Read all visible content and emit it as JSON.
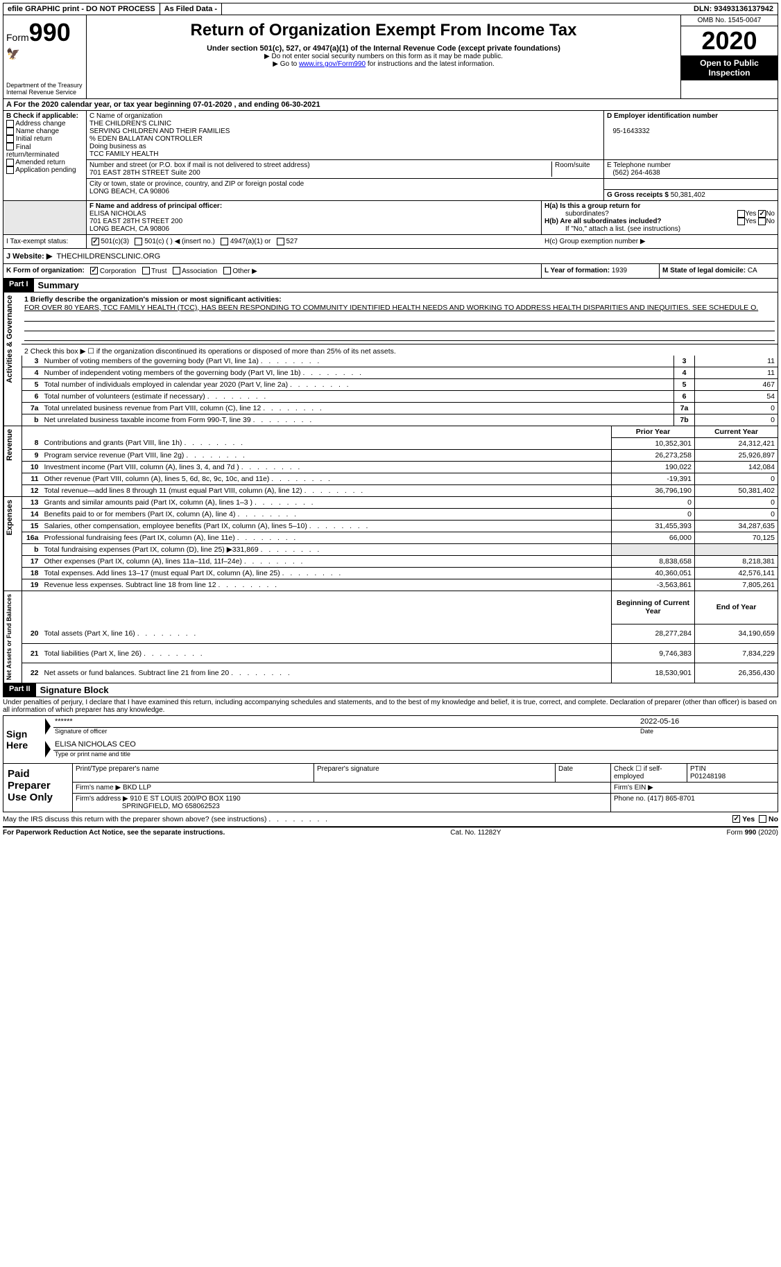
{
  "topbar": {
    "efile": "efile GRAPHIC print - DO NOT PROCESS",
    "asfiled": "As Filed Data -",
    "dln": "DLN: 93493136137942"
  },
  "header": {
    "form_label": "Form",
    "form_number": "990",
    "dept": "Department of the Treasury\nInternal Revenue Service",
    "title": "Return of Organization Exempt From Income Tax",
    "subtitle": "Under section 501(c), 527, or 4947(a)(1) of the Internal Revenue Code (except private foundations)",
    "note1": "▶ Do not enter social security numbers on this form as it may be made public.",
    "note2_pre": "▶ Go to ",
    "note2_link": "www.irs.gov/Form990",
    "note2_post": " for instructions and the latest information.",
    "omb": "OMB No. 1545-0047",
    "year": "2020",
    "open": "Open to Public Inspection"
  },
  "rowA": "A   For the 2020 calendar year, or tax year beginning 07-01-2020   , and ending 06-30-2021",
  "B": {
    "label": "B Check if applicable:",
    "items": [
      "Address change",
      "Name change",
      "Initial return",
      "Final return/terminated",
      "Amended return",
      "Application pending"
    ]
  },
  "C": {
    "label": "C Name of organization",
    "name1": "THE CHILDREN'S CLINIC",
    "name2": "SERVING CHILDREN AND THEIR FAMILIES",
    "care": "% EDEN BALLATAN CONTROLLER",
    "dba_label": "Doing business as",
    "dba": "TCC FAMILY HEALTH",
    "street_label": "Number and street (or P.O. box if mail is not delivered to street address)",
    "street": "701 EAST 28TH STREET Suite 200",
    "room_label": "Room/suite",
    "city_label": "City or town, state or province, country, and ZIP or foreign postal code",
    "city": "LONG BEACH, CA  90806"
  },
  "D": {
    "label": "D Employer identification number",
    "value": "95-1643332"
  },
  "E": {
    "label": "E Telephone number",
    "value": "(562) 264-4638"
  },
  "G": {
    "label": "G Gross receipts $",
    "value": "50,381,402"
  },
  "F": {
    "label": "F  Name and address of principal officer:",
    "name": "ELISA NICHOLAS",
    "street": "701 EAST 28TH STREET 200",
    "city": "LONG BEACH, CA  90806"
  },
  "H": {
    "a": "H(a)  Is this a group return for",
    "a2": "subordinates?",
    "b": "H(b)  Are all subordinates included?",
    "bnote": "If \"No,\" attach a list. (see instructions)",
    "c": "H(c)  Group exemption number ▶",
    "yes": "Yes",
    "no": "No"
  },
  "I": {
    "label": "I   Tax-exempt status:",
    "opts": [
      "501(c)(3)",
      "501(c) (   ) ◀ (insert no.)",
      "4947(a)(1) or",
      "527"
    ]
  },
  "J": {
    "label": "J   Website: ▶",
    "value": "THECHILDRENSCLINIC.ORG"
  },
  "K": {
    "label": "K Form of organization:",
    "opts": [
      "Corporation",
      "Trust",
      "Association",
      "Other ▶"
    ]
  },
  "L": {
    "label": "L Year of formation:",
    "value": "1939"
  },
  "M": {
    "label": "M State of legal domicile:",
    "value": "CA"
  },
  "partI": {
    "tag": "Part I",
    "title": "Summary"
  },
  "summary": {
    "line1_label": "1  Briefly describe the organization's mission or most significant activities:",
    "line1_text": "FOR OVER 80 YEARS, TCC FAMILY HEALTH (TCC), HAS BEEN RESPONDING TO COMMUNITY IDENTIFIED HEALTH NEEDS AND WORKING TO ADDRESS HEALTH DISPARITIES AND INEQUITIES. SEE SCHEDULE O.",
    "line2": "2   Check this box ▶ ☐  if the organization discontinued its operations or disposed of more than 25% of its net assets.",
    "sections": {
      "governance": "Activities & Governance",
      "revenue": "Revenue",
      "expenses": "Expenses",
      "netassets": "Net Assets or Fund Balances"
    },
    "simple_rows": [
      {
        "n": "3",
        "d": "Number of voting members of the governing body (Part VI, line 1a)",
        "c": "3",
        "v": "11"
      },
      {
        "n": "4",
        "d": "Number of independent voting members of the governing body (Part VI, line 1b)",
        "c": "4",
        "v": "11"
      },
      {
        "n": "5",
        "d": "Total number of individuals employed in calendar year 2020 (Part V, line 2a)",
        "c": "5",
        "v": "467"
      },
      {
        "n": "6",
        "d": "Total number of volunteers (estimate if necessary)",
        "c": "6",
        "v": "54"
      },
      {
        "n": "7a",
        "d": "Total unrelated business revenue from Part VIII, column (C), line 12",
        "c": "7a",
        "v": "0"
      },
      {
        "n": "b",
        "d": "Net unrelated business taxable income from Form 990-T, line 39",
        "c": "7b",
        "v": "0"
      }
    ],
    "col_headers": {
      "prior": "Prior Year",
      "current": "Current Year"
    },
    "rev_rows": [
      {
        "n": "8",
        "d": "Contributions and grants (Part VIII, line 1h)",
        "p": "10,352,301",
        "c": "24,312,421"
      },
      {
        "n": "9",
        "d": "Program service revenue (Part VIII, line 2g)",
        "p": "26,273,258",
        "c": "25,926,897"
      },
      {
        "n": "10",
        "d": "Investment income (Part VIII, column (A), lines 3, 4, and 7d )",
        "p": "190,022",
        "c": "142,084"
      },
      {
        "n": "11",
        "d": "Other revenue (Part VIII, column (A), lines 5, 6d, 8c, 9c, 10c, and 11e)",
        "p": "-19,391",
        "c": "0"
      },
      {
        "n": "12",
        "d": "Total revenue—add lines 8 through 11 (must equal Part VIII, column (A), line 12)",
        "p": "36,796,190",
        "c": "50,381,402"
      }
    ],
    "exp_rows": [
      {
        "n": "13",
        "d": "Grants and similar amounts paid (Part IX, column (A), lines 1–3 )",
        "p": "0",
        "c": "0"
      },
      {
        "n": "14",
        "d": "Benefits paid to or for members (Part IX, column (A), line 4)",
        "p": "0",
        "c": "0"
      },
      {
        "n": "15",
        "d": "Salaries, other compensation, employee benefits (Part IX, column (A), lines 5–10)",
        "p": "31,455,393",
        "c": "34,287,635"
      },
      {
        "n": "16a",
        "d": "Professional fundraising fees (Part IX, column (A), line 11e)",
        "p": "66,000",
        "c": "70,125"
      },
      {
        "n": "b",
        "d": "Total fundraising expenses (Part IX, column (D), line 25) ▶331,869",
        "p": "",
        "c": "",
        "shade": true
      },
      {
        "n": "17",
        "d": "Other expenses (Part IX, column (A), lines 11a–11d, 11f–24e)",
        "p": "8,838,658",
        "c": "8,218,381"
      },
      {
        "n": "18",
        "d": "Total expenses. Add lines 13–17 (must equal Part IX, column (A), line 25)",
        "p": "40,360,051",
        "c": "42,576,141"
      },
      {
        "n": "19",
        "d": "Revenue less expenses. Subtract line 18 from line 12",
        "p": "-3,563,861",
        "c": "7,805,261"
      }
    ],
    "na_headers": {
      "begin": "Beginning of Current Year",
      "end": "End of Year"
    },
    "na_rows": [
      {
        "n": "20",
        "d": "Total assets (Part X, line 16)",
        "p": "28,277,284",
        "c": "34,190,659"
      },
      {
        "n": "21",
        "d": "Total liabilities (Part X, line 26)",
        "p": "9,746,383",
        "c": "7,834,229"
      },
      {
        "n": "22",
        "d": "Net assets or fund balances. Subtract line 21 from line 20",
        "p": "18,530,901",
        "c": "26,356,430"
      }
    ]
  },
  "partII": {
    "tag": "Part II",
    "title": "Signature Block"
  },
  "sig": {
    "perjury": "Under penalties of perjury, I declare that I have examined this return, including accompanying schedules and statements, and to the best of my knowledge and belief, it is true, correct, and complete. Declaration of preparer (other than officer) is based on all information of which preparer has any knowledge.",
    "sign_here": "Sign Here",
    "stars": "******",
    "date": "2022-05-16",
    "sig_label": "Signature of officer",
    "date_label": "Date",
    "name_title": "ELISA NICHOLAS CEO",
    "name_label": "Type or print name and title"
  },
  "preparer": {
    "left": "Paid Preparer Use Only",
    "h1": "Print/Type preparer's name",
    "h2": "Preparer's signature",
    "h3": "Date",
    "h4a": "Check ☐ if self-employed",
    "h4b": "PTIN",
    "ptin": "P01248198",
    "firm_label": "Firm's name   ▶",
    "firm": "BKD LLP",
    "ein_label": "Firm's EIN ▶",
    "addr_label": "Firm's address ▶",
    "addr1": "910 E ST LOUIS 200/PO BOX 1190",
    "addr2": "SPRINGFIELD, MO  658062523",
    "phone_label": "Phone no.",
    "phone": "(417) 865-8701"
  },
  "discuss": "May the IRS discuss this return with the preparer shown above? (see instructions)",
  "footer": {
    "left": "For Paperwork Reduction Act Notice, see the separate instructions.",
    "mid": "Cat. No. 11282Y",
    "right_pre": "Form ",
    "right_form": "990",
    "right_post": " (2020)"
  }
}
